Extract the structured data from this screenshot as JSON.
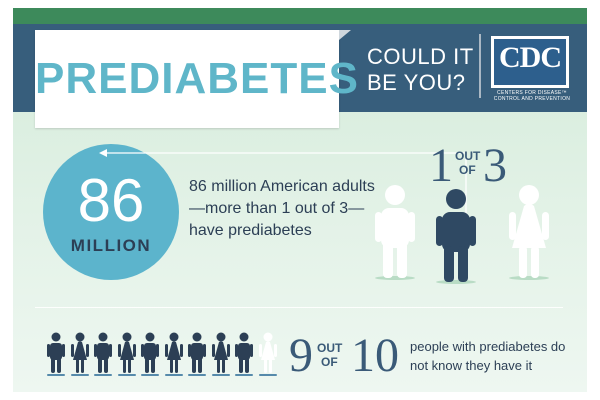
{
  "header": {
    "title": "PREDIABETES",
    "tagline_line1": "COULD IT",
    "tagline_line2": "BE YOU?",
    "logo": {
      "letters": "CDC",
      "subtitle_line1": "CENTERS FOR DISEASE™",
      "subtitle_line2": "CONTROL AND PREVENTION"
    }
  },
  "stat1": {
    "number": "86",
    "unit": "MILLION",
    "description": "86 million American adults—more than 1 out of 3—have prediabetes"
  },
  "ratio1": {
    "numerator": "1",
    "word_out": "OUT",
    "word_of": "OF",
    "denominator": "3"
  },
  "stat2": {
    "numerator": "9",
    "word_out": "OUT",
    "word_of": "OF",
    "denominator": "10",
    "description": "people with prediabetes do not know they have it"
  },
  "colors": {
    "title_teal": "#5fb6c9",
    "header_navy": "#375e7c",
    "circle_blue": "#5cb4cc",
    "figure_dark": "#2c3f55",
    "figure_white": "#ffffff",
    "strip_green": "#3d8a5b"
  },
  "icons": [
    "person-icon",
    "arrow-icon",
    "cdc-logo"
  ]
}
